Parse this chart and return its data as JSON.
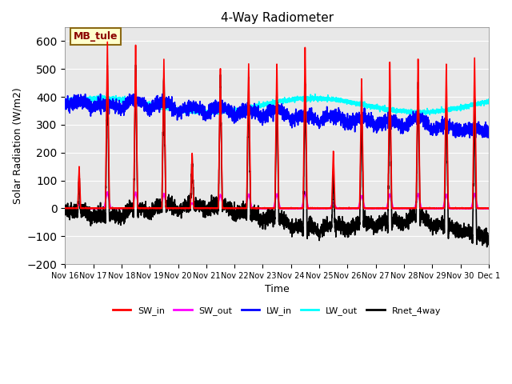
{
  "title": "4-Way Radiometer",
  "ylabel": "Solar Radiation (W/m2)",
  "xlabel": "Time",
  "ylim": [
    -200,
    650
  ],
  "yticks": [
    -200,
    -100,
    0,
    100,
    200,
    300,
    400,
    500,
    600
  ],
  "bg_color": "#e8e8e8",
  "annotation_text": "MB_tule",
  "annotation_color": "#8B0000",
  "annotation_bg": "#ffffcc",
  "annotation_border": "#8B6914",
  "series": {
    "SW_in": {
      "color": "red",
      "lw": 1.2
    },
    "SW_out": {
      "color": "magenta",
      "lw": 1.2
    },
    "LW_in": {
      "color": "blue",
      "lw": 1.2
    },
    "LW_out": {
      "color": "cyan",
      "lw": 1.2
    },
    "Rnet_4way": {
      "color": "black",
      "lw": 1.2
    }
  },
  "num_points": 4320,
  "seed": 42
}
